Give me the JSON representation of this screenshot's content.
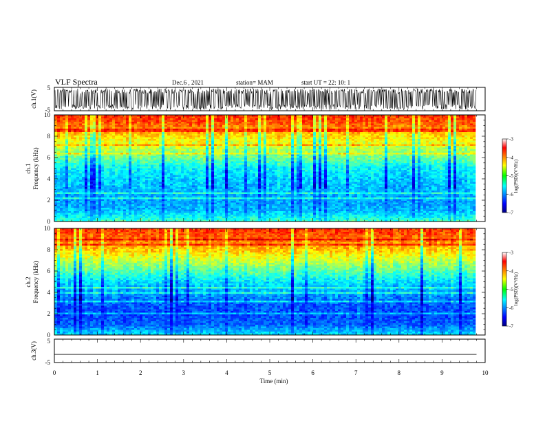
{
  "header": {
    "title": "VLF Spectra",
    "date": "Dec.6 , 2021",
    "station": "station= MAM",
    "start": "start UT = 22: 10: 1"
  },
  "chart_data": {
    "type": "heatmap",
    "time_axis": {
      "label": "Time (min)",
      "range": [
        0,
        10
      ],
      "ticks": [
        "0",
        "1",
        "2",
        "3",
        "4",
        "5",
        "6",
        "7",
        "8",
        "9",
        "10"
      ],
      "data_extent_min": 9.8
    },
    "panels": [
      {
        "id": "ch1-waveform",
        "type": "line",
        "ylabel": "ch.1(V)",
        "ylim": [
          -5,
          5
        ],
        "yticks": [
          "5",
          "-5"
        ],
        "amplitude_approx": 4.5
      },
      {
        "id": "ch1-spectrogram",
        "type": "heatmap",
        "ylabel_top": "ch.1",
        "ylabel": "Frequency (kHz)",
        "ylim": [
          0,
          10
        ],
        "yticks": [
          "0",
          "2",
          "4",
          "6",
          "8",
          "10"
        ],
        "colorbar": {
          "label": "log(PSD)(V²/Hz)",
          "range": [
            -7,
            -3
          ],
          "ticks": [
            "-3",
            "-4",
            "-5",
            "-6",
            "-7"
          ]
        },
        "approx_log_psd_by_frequency": [
          {
            "f_khz": 0.0,
            "v": -5.0
          },
          {
            "f_khz": 1.0,
            "v": -5.6
          },
          {
            "f_khz": 2.0,
            "v": -5.7
          },
          {
            "f_khz": 3.0,
            "v": -5.6
          },
          {
            "f_khz": 4.0,
            "v": -5.5
          },
          {
            "f_khz": 5.0,
            "v": -5.3
          },
          {
            "f_khz": 6.0,
            "v": -4.8
          },
          {
            "f_khz": 7.0,
            "v": -4.4
          },
          {
            "f_khz": 8.0,
            "v": -4.0
          },
          {
            "f_khz": 9.0,
            "v": -3.5
          },
          {
            "f_khz": 10.0,
            "v": -3.2
          }
        ]
      },
      {
        "id": "ch2-spectrogram",
        "type": "heatmap",
        "ylabel_top": "ch.2",
        "ylabel": "Frequency (kHz)",
        "ylim": [
          0,
          10
        ],
        "yticks": [
          "0",
          "2",
          "4",
          "6",
          "8",
          "10"
        ],
        "colorbar": {
          "label": "log(PSD)(V²/Hz)",
          "range": [
            -7,
            -3
          ],
          "ticks": [
            "-3",
            "-4",
            "-5",
            "-6",
            "-7"
          ]
        },
        "approx_log_psd_by_frequency": [
          {
            "f_khz": 0.0,
            "v": -5.4
          },
          {
            "f_khz": 1.0,
            "v": -6.0
          },
          {
            "f_khz": 2.0,
            "v": -6.1
          },
          {
            "f_khz": 3.0,
            "v": -6.0
          },
          {
            "f_khz": 4.0,
            "v": -5.7
          },
          {
            "f_khz": 5.0,
            "v": -5.4
          },
          {
            "f_khz": 6.0,
            "v": -4.9
          },
          {
            "f_khz": 7.0,
            "v": -4.4
          },
          {
            "f_khz": 8.0,
            "v": -3.9
          },
          {
            "f_khz": 9.0,
            "v": -3.5
          },
          {
            "f_khz": 10.0,
            "v": -3.2
          }
        ]
      },
      {
        "id": "ch3-waveform",
        "type": "line",
        "ylabel": "ch.3(V)",
        "ylim": [
          -5,
          5
        ],
        "yticks": [
          "5",
          "-5"
        ],
        "constant_value": -1.5
      }
    ]
  }
}
